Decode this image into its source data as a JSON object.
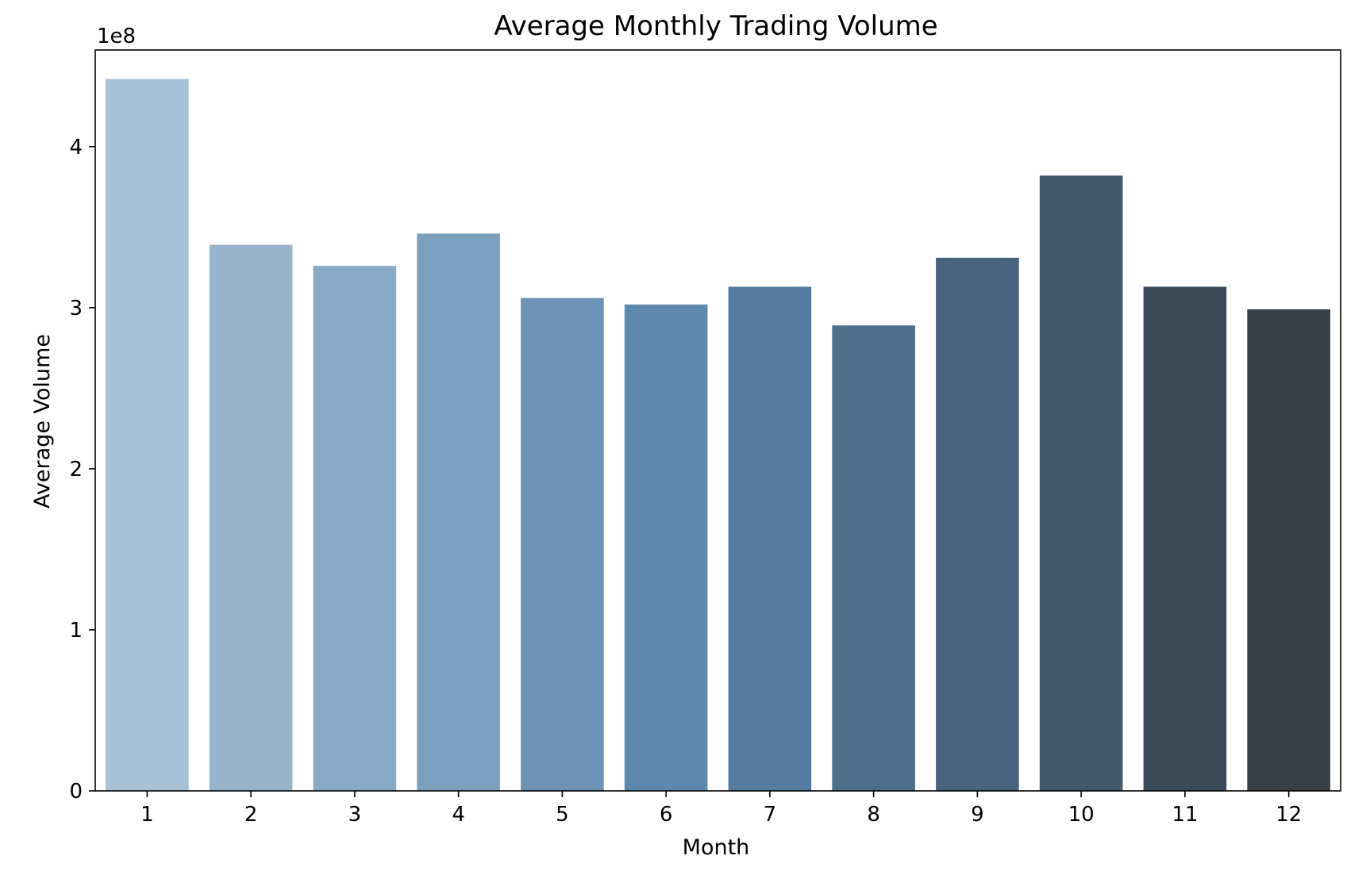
{
  "chart_data": {
    "type": "bar",
    "title": "Average Monthly Trading Volume",
    "xlabel": "Month",
    "ylabel": "Average Volume",
    "y_offset_label": "1e8",
    "categories": [
      "1",
      "2",
      "3",
      "4",
      "5",
      "6",
      "7",
      "8",
      "9",
      "10",
      "11",
      "12"
    ],
    "values": [
      442000000,
      339000000,
      326000000,
      346000000,
      306000000,
      302000000,
      313000000,
      289000000,
      331000000,
      382000000,
      313000000,
      299000000
    ],
    "ylim": [
      0,
      460000000
    ],
    "yticks": [
      0,
      100000000,
      200000000,
      300000000,
      400000000
    ],
    "ytick_labels": [
      "0",
      "1",
      "2",
      "3",
      "4"
    ],
    "grid": false,
    "legend": "none",
    "colors": [
      "#a7c1d7",
      "#98b4cd",
      "#89aac6",
      "#7a9fbf",
      "#6c92b5",
      "#5d89ae",
      "#537ca0",
      "#4d6f8c",
      "#48637d",
      "#42586b",
      "#3b4a59",
      "#373f48"
    ]
  }
}
